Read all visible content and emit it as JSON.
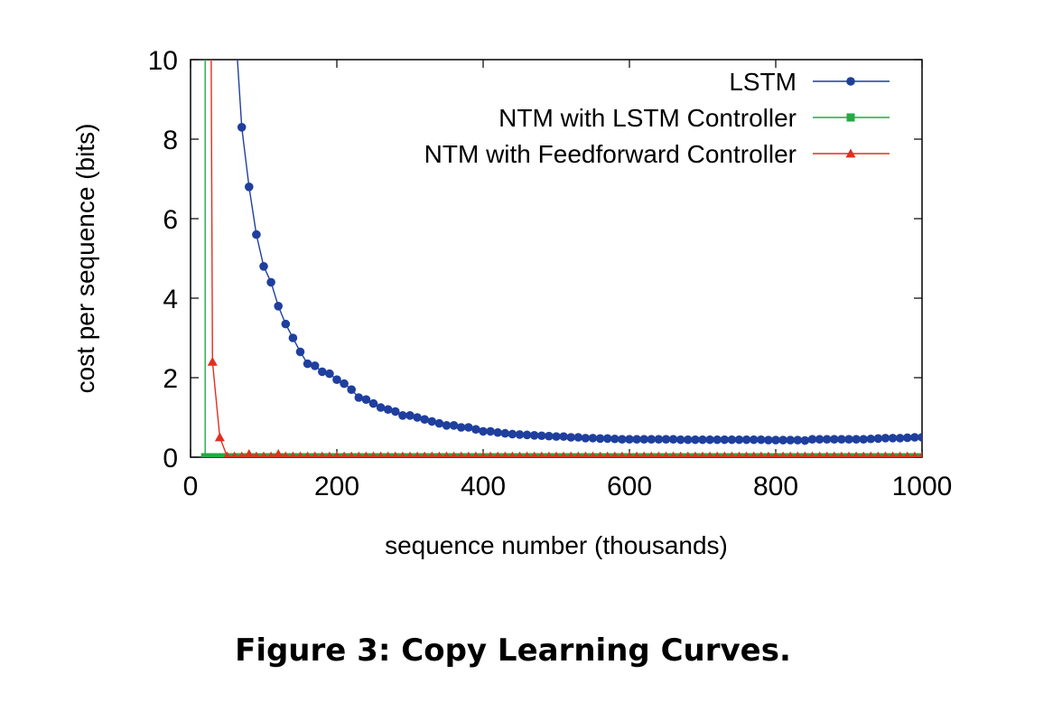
{
  "caption": "Figure 3: Copy Learning Curves.",
  "chart_data": {
    "type": "line",
    "title": "",
    "xlabel": "sequence number (thousands)",
    "ylabel": "cost per sequence (bits)",
    "xlim": [
      0,
      1000
    ],
    "ylim": [
      0,
      10
    ],
    "xticks": [
      "0",
      "200",
      "400",
      "600",
      "800",
      "1000"
    ],
    "yticks": [
      "0",
      "2",
      "4",
      "6",
      "8",
      "10"
    ],
    "grid": false,
    "legend_position": "top-right",
    "series": [
      {
        "name": "LSTM",
        "color": "#1f3f9e",
        "marker": "circle",
        "x": [
          70,
          80,
          90,
          100,
          110,
          120,
          130,
          140,
          150,
          160,
          170,
          180,
          190,
          200,
          210,
          220,
          230,
          240,
          250,
          260,
          270,
          280,
          290,
          300,
          310,
          320,
          330,
          340,
          350,
          360,
          370,
          380,
          390,
          400,
          410,
          420,
          430,
          440,
          450,
          460,
          470,
          480,
          490,
          500,
          510,
          520,
          530,
          540,
          550,
          560,
          570,
          580,
          590,
          600,
          610,
          620,
          630,
          640,
          650,
          660,
          670,
          680,
          690,
          700,
          710,
          720,
          730,
          740,
          750,
          760,
          770,
          780,
          790,
          800,
          810,
          820,
          830,
          840,
          850,
          860,
          870,
          880,
          890,
          900,
          910,
          920,
          930,
          940,
          950,
          960,
          970,
          980,
          990,
          1000
        ],
        "y": [
          8.3,
          6.8,
          5.6,
          4.8,
          4.4,
          3.8,
          3.35,
          3.0,
          2.65,
          2.35,
          2.3,
          2.15,
          2.1,
          1.95,
          1.85,
          1.7,
          1.5,
          1.45,
          1.35,
          1.25,
          1.2,
          1.15,
          1.05,
          1.05,
          1.0,
          0.95,
          0.9,
          0.85,
          0.8,
          0.8,
          0.75,
          0.75,
          0.7,
          0.65,
          0.65,
          0.62,
          0.6,
          0.58,
          0.57,
          0.56,
          0.55,
          0.54,
          0.53,
          0.52,
          0.52,
          0.5,
          0.5,
          0.48,
          0.48,
          0.47,
          0.47,
          0.46,
          0.45,
          0.45,
          0.45,
          0.45,
          0.45,
          0.45,
          0.45,
          0.45,
          0.44,
          0.44,
          0.44,
          0.44,
          0.44,
          0.44,
          0.44,
          0.44,
          0.44,
          0.44,
          0.44,
          0.44,
          0.43,
          0.43,
          0.43,
          0.43,
          0.43,
          0.42,
          0.45,
          0.45,
          0.45,
          0.45,
          0.45,
          0.45,
          0.45,
          0.45,
          0.46,
          0.47,
          0.48,
          0.48,
          0.48,
          0.49,
          0.5,
          0.5
        ]
      },
      {
        "name": "NTM with LSTM Controller",
        "color": "#22aa44",
        "marker": "square",
        "x": [
          20,
          30,
          40,
          50,
          60,
          70,
          80,
          90,
          100,
          110,
          120,
          130,
          140,
          150,
          160,
          170,
          180,
          190,
          200,
          210,
          220,
          230,
          240,
          250,
          260,
          270,
          280,
          290,
          300,
          310,
          320,
          330,
          340,
          350,
          360,
          370,
          380,
          390,
          400,
          410,
          420,
          430,
          440,
          450,
          460,
          470,
          480,
          490,
          500,
          510,
          520,
          530,
          540,
          550,
          560,
          570,
          580,
          590,
          600,
          610,
          620,
          630,
          640,
          650,
          660,
          670,
          680,
          690,
          700,
          710,
          720,
          730,
          740,
          750,
          760,
          770,
          780,
          790,
          800,
          810,
          820,
          830,
          840,
          850,
          860,
          870,
          880,
          890,
          900,
          910,
          920,
          930,
          940,
          950,
          960,
          970,
          980,
          990,
          1000
        ],
        "y": [
          0.0,
          0.0,
          0.0,
          0.0,
          0.0,
          0.0,
          0.0,
          0.0,
          0.0,
          0.0,
          0.0,
          0.0,
          0.0,
          0.0,
          0.0,
          0.0,
          0.0,
          0.0,
          0.0,
          0.0,
          0.0,
          0.0,
          0.0,
          0.0,
          0.0,
          0.0,
          0.0,
          0.0,
          0.0,
          0.0,
          0.0,
          0.0,
          0.0,
          0.0,
          0.0,
          0.0,
          0.0,
          0.0,
          0.0,
          0.0,
          0.0,
          0.0,
          0.0,
          0.0,
          0.0,
          0.0,
          0.0,
          0.0,
          0.0,
          0.0,
          0.0,
          0.0,
          0.0,
          0.0,
          0.0,
          0.0,
          0.0,
          0.0,
          0.0,
          0.0,
          0.0,
          0.0,
          0.0,
          0.0,
          0.0,
          0.0,
          0.0,
          0.0,
          0.0,
          0.0,
          0.0,
          0.0,
          0.0,
          0.0,
          0.0,
          0.0,
          0.0,
          0.0,
          0.0,
          0.0,
          0.0,
          0.0,
          0.0,
          0.0,
          0.0,
          0.0,
          0.0,
          0.0,
          0.0,
          0.0,
          0.0,
          0.0,
          0.0,
          0.0,
          0.0,
          0.0,
          0.0,
          0.0,
          0.0
        ]
      },
      {
        "name": "NTM with Feedforward Controller",
        "color": "#e0301e",
        "marker": "triangle",
        "x": [
          30,
          40,
          50,
          60,
          70,
          80,
          90,
          100,
          110,
          120,
          130,
          140,
          150,
          160,
          170,
          180,
          190,
          200,
          210,
          220,
          230,
          240,
          250,
          260,
          270,
          280,
          290,
          300,
          310,
          320,
          330,
          340,
          350,
          360,
          370,
          380,
          390,
          400,
          410,
          420,
          430,
          440,
          450,
          460,
          470,
          480,
          490,
          500,
          510,
          520,
          530,
          540,
          550,
          560,
          570,
          580,
          590,
          600,
          610,
          620,
          630,
          640,
          650,
          660,
          670,
          680,
          690,
          700,
          710,
          720,
          730,
          740,
          750,
          760,
          770,
          780,
          790,
          800,
          810,
          820,
          830,
          840,
          850,
          860,
          870,
          880,
          890,
          900,
          910,
          920,
          930,
          940,
          950,
          960,
          970,
          980,
          990,
          1000
        ],
        "y": [
          2.4,
          0.5,
          0.02,
          0.02,
          0.02,
          0.08,
          0.02,
          0.02,
          0.02,
          0.08,
          0.02,
          0.02,
          0.02,
          0.02,
          0.02,
          0.02,
          0.02,
          0.02,
          0.02,
          0.02,
          0.02,
          0.02,
          0.02,
          0.02,
          0.02,
          0.02,
          0.02,
          0.02,
          0.02,
          0.02,
          0.02,
          0.02,
          0.02,
          0.02,
          0.02,
          0.02,
          0.02,
          0.02,
          0.02,
          0.02,
          0.02,
          0.02,
          0.02,
          0.02,
          0.02,
          0.02,
          0.02,
          0.02,
          0.02,
          0.02,
          0.02,
          0.02,
          0.02,
          0.02,
          0.02,
          0.02,
          0.02,
          0.02,
          0.02,
          0.02,
          0.02,
          0.02,
          0.02,
          0.02,
          0.02,
          0.02,
          0.02,
          0.02,
          0.02,
          0.02,
          0.02,
          0.02,
          0.02,
          0.02,
          0.02,
          0.02,
          0.02,
          0.02,
          0.02,
          0.02,
          0.02,
          0.02,
          0.02,
          0.02,
          0.02,
          0.02,
          0.02,
          0.02,
          0.02,
          0.02,
          0.02,
          0.02,
          0.02,
          0.02,
          0.02,
          0.02,
          0.02,
          0.02
        ]
      }
    ]
  }
}
